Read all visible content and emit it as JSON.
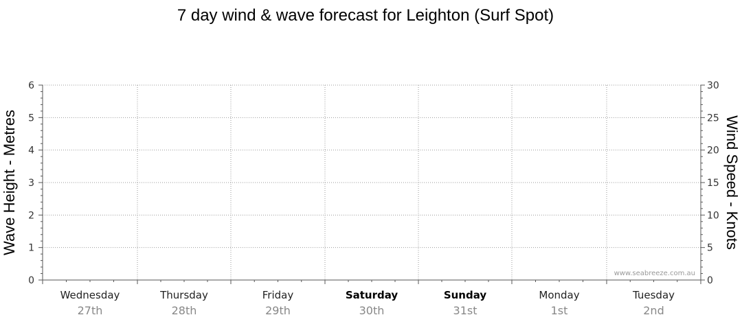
{
  "chart_data": {
    "type": "line",
    "title": "7 day wind & wave forecast for Leighton (Surf Spot)",
    "y_left": {
      "label": "Wave Height - Metres",
      "range": [
        0,
        6
      ],
      "ticks": [
        0,
        1,
        2,
        3,
        4,
        5,
        6
      ]
    },
    "y_right": {
      "label": "Wind Speed - Knots",
      "range": [
        0,
        30
      ],
      "ticks": [
        0,
        5,
        10,
        15,
        20,
        25,
        30
      ]
    },
    "days": [
      {
        "name": "Wednesday",
        "date": "27th",
        "weekend": false
      },
      {
        "name": "Thursday",
        "date": "28th",
        "weekend": false
      },
      {
        "name": "Friday",
        "date": "29th",
        "weekend": false
      },
      {
        "name": "Saturday",
        "date": "30th",
        "weekend": true
      },
      {
        "name": "Sunday",
        "date": "31st",
        "weekend": true
      },
      {
        "name": "Monday",
        "date": "1st",
        "weekend": false
      },
      {
        "name": "Tuesday",
        "date": "2nd",
        "weekend": false
      }
    ],
    "series": [],
    "grid": true,
    "watermark": "www.seabreeze.com.au"
  }
}
